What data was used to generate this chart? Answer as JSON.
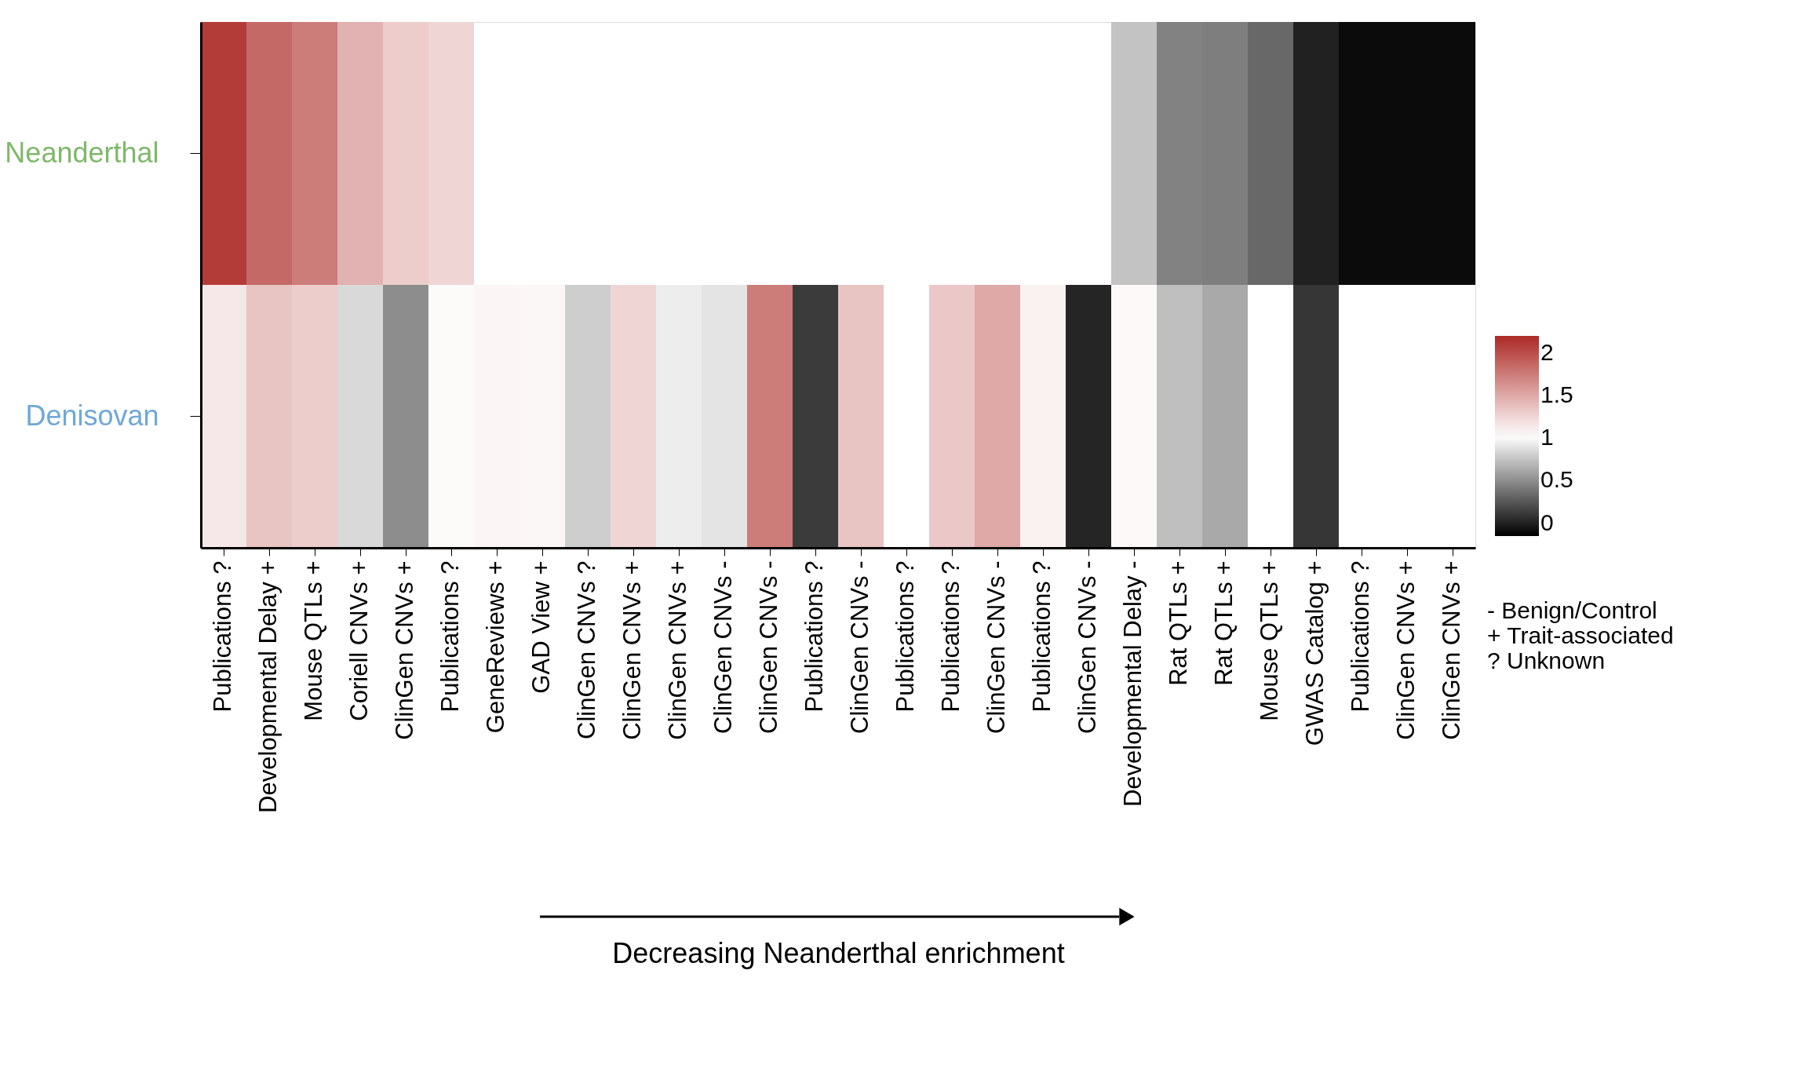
{
  "chart_data": {
    "type": "heatmap",
    "xlabel": "Decreasing Neanderthal enrichment",
    "categories": [
      "Publications ?",
      "Developmental Delay +",
      "Mouse QTLs +",
      "Coriell CNVs +",
      "ClinGen CNVs +",
      "Publications ?",
      "GeneReviews +",
      "GAD View +",
      "ClinGen CNVs ?",
      "ClinGen CNVs +",
      "ClinGen CNVs +",
      "ClinGen CNVs -",
      "ClinGen CNVs -",
      "Publications ?",
      "ClinGen CNVs -",
      "Publications ?",
      "Publications ?",
      "ClinGen CNVs -",
      "Publications ?",
      "ClinGen CNVs -",
      "Developmental Delay -",
      "Rat QTLs +",
      "Rat QTLs +",
      "Mouse QTLs +",
      "GWAS Catalog +",
      "Publications ?",
      "ClinGen CNVs +",
      "ClinGen CNVs +"
    ],
    "y_categories": [
      "Neanderthal",
      "Denisovan"
    ],
    "cells": [
      [
        2.1,
        1.85,
        1.75,
        1.45,
        1.3,
        1.25,
        null,
        null,
        null,
        null,
        null,
        null,
        null,
        null,
        null,
        null,
        null,
        null,
        null,
        null,
        0.75,
        0.45,
        0.43,
        0.33,
        0.0,
        -0.1,
        -0.1,
        -0.1
      ],
      [
        1.15,
        1.35,
        1.3,
        0.85,
        0.5,
        1.05,
        1.08,
        1.07,
        0.8,
        1.25,
        0.94,
        0.9,
        1.75,
        0.12,
        1.35,
        null,
        1.33,
        1.5,
        1.1,
        0.02,
        1.06,
        0.73,
        0.63,
        null,
        0.1,
        null,
        null,
        null
      ]
    ],
    "clim": [
      -0.15,
      2.2
    ],
    "cticks": [
      0,
      0.5,
      1,
      1.5,
      2
    ],
    "annotations": [
      "- Benign/Control",
      "+ Trait-associated",
      "? Unknown"
    ]
  }
}
